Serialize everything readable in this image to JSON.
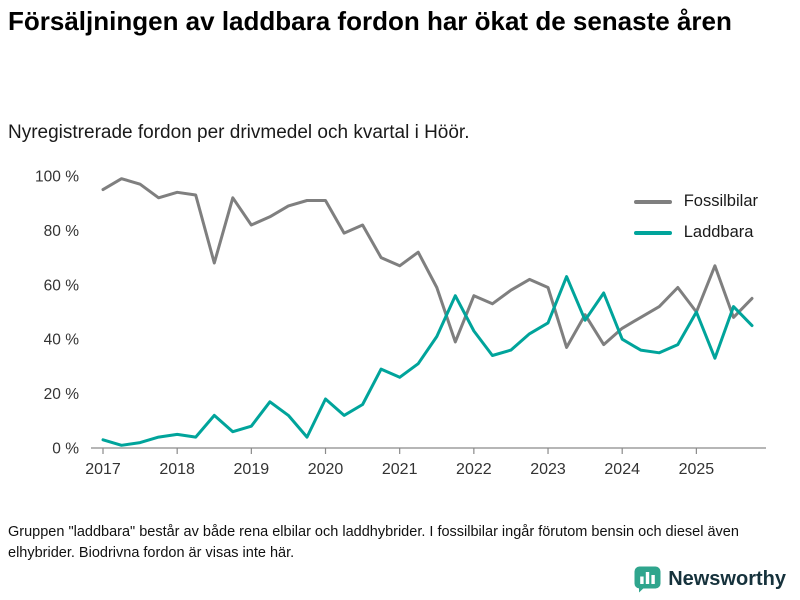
{
  "title": "Försäljningen av laddbara fordon har ökat de senaste åren",
  "subtitle": "Nyregistrerade fordon per drivmedel och kvartal i Höör.",
  "footnote": "Gruppen \"laddbara\" består av både rena elbilar och laddhybrider. I fossilbilar ingår förutom bensin och diesel även elhybrider. Biodrivna fordon är visas inte här.",
  "brand": {
    "name": "Newsworthy",
    "color": "#2fa58d"
  },
  "chart_data": {
    "type": "line",
    "title": "Försäljningen av laddbara fordon har ökat de senaste åren",
    "subtitle": "Nyregistrerade fordon per drivmedel och kvartal i Höör.",
    "unit": "%",
    "ylim": [
      0,
      100
    ],
    "grid": false,
    "legend_position": "top-right",
    "y_ticks": [
      0,
      20,
      40,
      60,
      80,
      100
    ],
    "y_tick_suffix": " %",
    "x_tick_labels": [
      "2017",
      "2018",
      "2019",
      "2020",
      "2021",
      "2022",
      "2023",
      "2024",
      "2025"
    ],
    "quarters": [
      "2017 Q1",
      "2017 Q2",
      "2017 Q3",
      "2017 Q4",
      "2018 Q1",
      "2018 Q2",
      "2018 Q3",
      "2018 Q4",
      "2019 Q1",
      "2019 Q2",
      "2019 Q3",
      "2019 Q4",
      "2020 Q1",
      "2020 Q2",
      "2020 Q3",
      "2020 Q4",
      "2021 Q1",
      "2021 Q2",
      "2021 Q3",
      "2021 Q4",
      "2022 Q1",
      "2022 Q2",
      "2022 Q3",
      "2022 Q4",
      "2023 Q1",
      "2023 Q2",
      "2023 Q3",
      "2023 Q4",
      "2024 Q1",
      "2024 Q2",
      "2024 Q3",
      "2024 Q4",
      "2025 Q1",
      "2025 Q2",
      "2025 Q3",
      "2025 Q4"
    ],
    "series": [
      {
        "name": "Fossilbilar",
        "color": "#7f7f7f",
        "values": [
          95,
          99,
          97,
          92,
          94,
          93,
          68,
          92,
          82,
          85,
          89,
          91,
          91,
          79,
          82,
          70,
          67,
          72,
          59,
          39,
          56,
          53,
          58,
          62,
          59,
          37,
          49,
          38,
          44,
          48,
          52,
          59,
          50,
          67,
          48,
          55
        ]
      },
      {
        "name": "Laddbara",
        "color": "#00a49b",
        "values": [
          3,
          1,
          2,
          4,
          5,
          4,
          12,
          6,
          8,
          17,
          12,
          4,
          18,
          12,
          16,
          29,
          26,
          31,
          41,
          56,
          43,
          34,
          36,
          42,
          46,
          63,
          47,
          57,
          40,
          36,
          35,
          38,
          50,
          33,
          52,
          45
        ]
      }
    ]
  }
}
